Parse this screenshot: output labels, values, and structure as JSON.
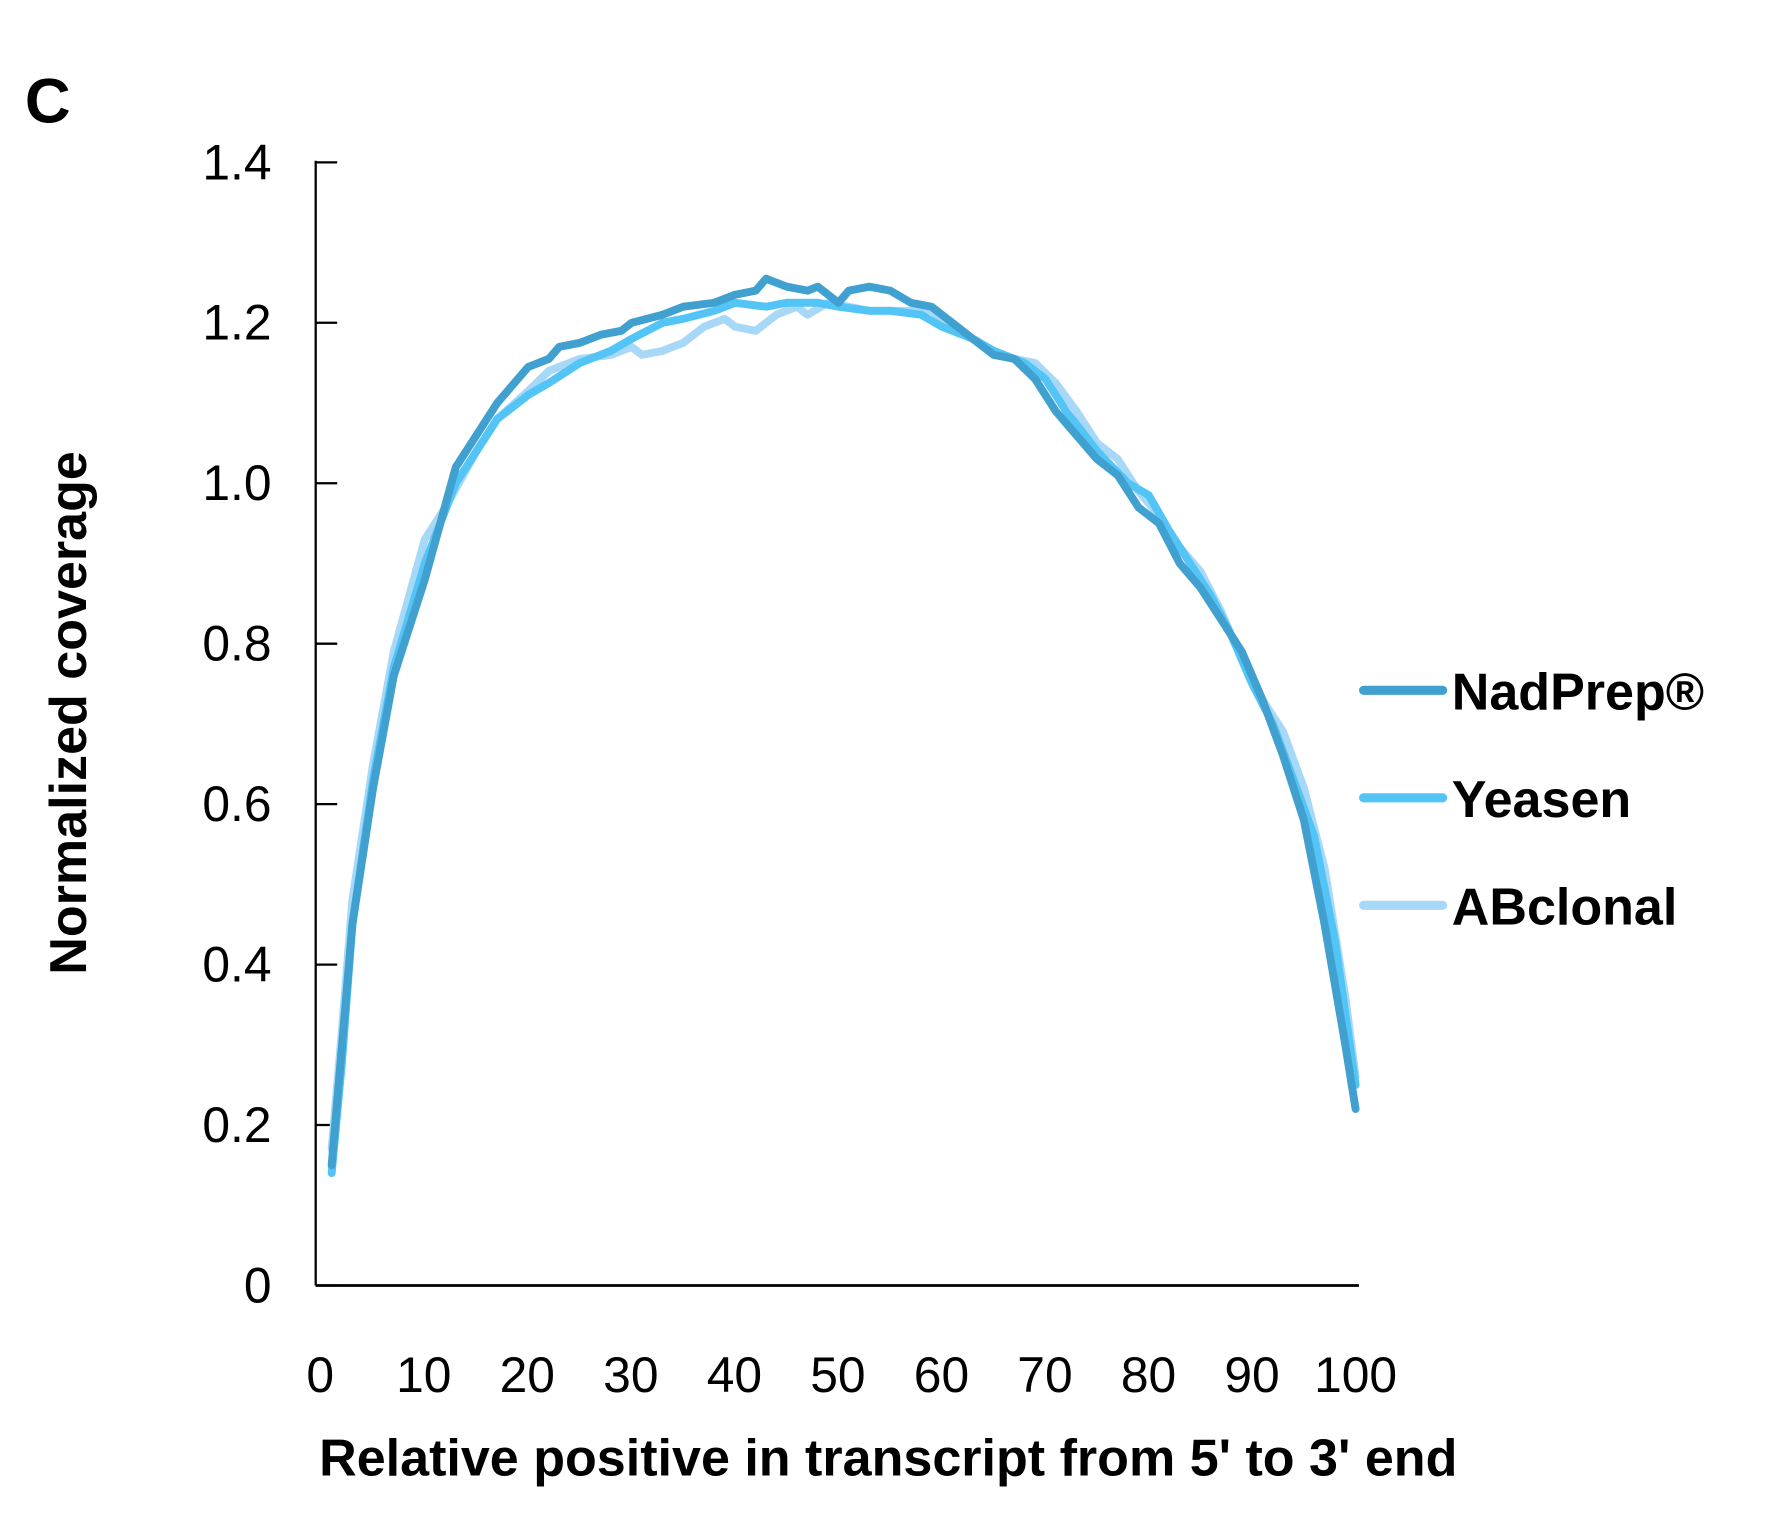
{
  "panel_label": "C",
  "chart_data": {
    "type": "line",
    "title": "",
    "xlabel": "Relative positive in transcript from 5' to 3' end",
    "ylabel": "Normalized coverage",
    "xlim": [
      0,
      100
    ],
    "ylim": [
      0,
      1.4
    ],
    "x_ticks": [
      "0",
      "10",
      "20",
      "30",
      "40",
      "50",
      "60",
      "70",
      "80",
      "90",
      "100"
    ],
    "y_ticks": [
      "0",
      "0.2",
      "0.4",
      "0.6",
      "0.8",
      "1.0",
      "1.2",
      "1.4"
    ],
    "grid": false,
    "legend_position": "right",
    "series": [
      {
        "name": "ABclonal",
        "color": "#A8D8F8",
        "x": [
          1,
          2,
          3,
          5,
          7,
          10,
          12,
          15,
          17,
          20,
          22,
          25,
          28,
          30,
          31,
          33,
          35,
          37,
          39,
          40,
          42,
          44,
          46,
          47,
          49,
          51,
          53,
          55,
          57,
          59,
          61,
          63,
          65,
          67,
          69,
          71,
          73,
          75,
          77,
          79,
          81,
          83,
          85,
          87,
          89,
          91,
          93,
          95,
          97,
          99,
          100
        ],
        "y": [
          0.17,
          0.32,
          0.48,
          0.65,
          0.79,
          0.93,
          0.97,
          1.04,
          1.08,
          1.115,
          1.14,
          1.155,
          1.16,
          1.17,
          1.16,
          1.165,
          1.175,
          1.195,
          1.205,
          1.195,
          1.19,
          1.21,
          1.22,
          1.21,
          1.225,
          1.22,
          1.215,
          1.215,
          1.215,
          1.215,
          1.195,
          1.18,
          1.165,
          1.155,
          1.15,
          1.125,
          1.09,
          1.05,
          1.03,
          0.99,
          0.96,
          0.92,
          0.89,
          0.84,
          0.78,
          0.73,
          0.69,
          0.62,
          0.52,
          0.36,
          0.26
        ]
      },
      {
        "name": "Yeasen",
        "color": "#52C4F5",
        "x": [
          1,
          2,
          3,
          5,
          7,
          10,
          13,
          15,
          17,
          20,
          22,
          25,
          28,
          30,
          33,
          35,
          38,
          40,
          43,
          45,
          48,
          50,
          53,
          55,
          58,
          60,
          63,
          65,
          68,
          70,
          72,
          75,
          78,
          80,
          82,
          84,
          86,
          88,
          90,
          92,
          94,
          96,
          98,
          100
        ],
        "y": [
          0.14,
          0.28,
          0.45,
          0.63,
          0.77,
          0.9,
          1.0,
          1.04,
          1.08,
          1.11,
          1.125,
          1.15,
          1.165,
          1.18,
          1.2,
          1.205,
          1.215,
          1.225,
          1.22,
          1.225,
          1.225,
          1.22,
          1.215,
          1.215,
          1.21,
          1.195,
          1.18,
          1.165,
          1.15,
          1.13,
          1.09,
          1.04,
          1.0,
          0.985,
          0.94,
          0.9,
          0.86,
          0.81,
          0.75,
          0.7,
          0.63,
          0.56,
          0.43,
          0.25
        ]
      },
      {
        "name": "NadPrep®",
        "color": "#40A0CF",
        "x": [
          1,
          2,
          3,
          5,
          7,
          10,
          13,
          15,
          17,
          20,
          22,
          23,
          25,
          27,
          29,
          30,
          33,
          35,
          38,
          40,
          42,
          43,
          45,
          47,
          48,
          50,
          51,
          53,
          55,
          57,
          59,
          61,
          63,
          65,
          67,
          69,
          71,
          73,
          75,
          77,
          79,
          81,
          83,
          85,
          87,
          89,
          91,
          93,
          95,
          97,
          99,
          100
        ],
        "y": [
          0.15,
          0.3,
          0.45,
          0.62,
          0.76,
          0.88,
          1.02,
          1.06,
          1.1,
          1.145,
          1.155,
          1.17,
          1.175,
          1.185,
          1.19,
          1.2,
          1.21,
          1.22,
          1.225,
          1.235,
          1.24,
          1.255,
          1.245,
          1.24,
          1.245,
          1.225,
          1.24,
          1.245,
          1.24,
          1.225,
          1.22,
          1.2,
          1.18,
          1.16,
          1.155,
          1.13,
          1.09,
          1.06,
          1.03,
          1.01,
          0.97,
          0.95,
          0.9,
          0.87,
          0.83,
          0.79,
          0.73,
          0.66,
          0.58,
          0.45,
          0.3,
          0.22
        ]
      }
    ],
    "legend": [
      {
        "name": "NadPrep®",
        "color": "#40A0CF"
      },
      {
        "name": "Yeasen",
        "color": "#52C4F5"
      },
      {
        "name": "ABclonal",
        "color": "#A8D8F8"
      }
    ]
  }
}
